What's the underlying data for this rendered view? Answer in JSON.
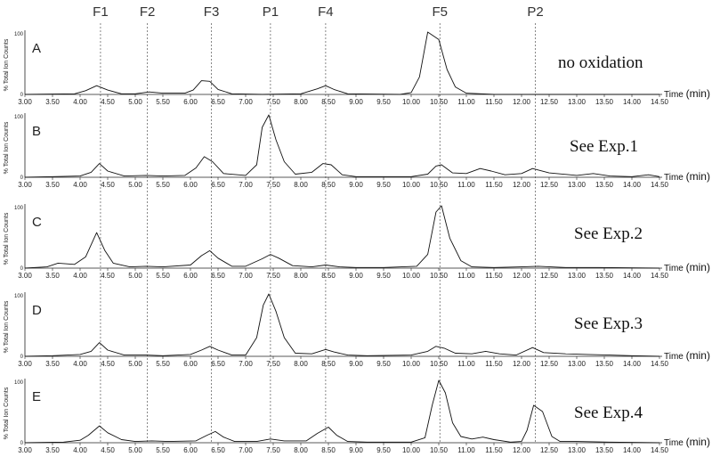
{
  "chart_data": {
    "type": "line",
    "xlabel": "Time",
    "xunit": "(min)",
    "ylabel": "% Total Ion Counts",
    "x_range": [
      3.0,
      14.5
    ],
    "y_range": [
      0,
      100
    ],
    "y_ticks": [
      "100",
      "0"
    ],
    "x_ticks": [
      "3.00",
      "3.50",
      "4.00",
      "4.50",
      "5.00",
      "5.50",
      "6.00",
      "6.50",
      "7.00",
      "7.50",
      "8.00",
      "8.50",
      "9.00",
      "9.50",
      "10.00",
      "10.50",
      "11.00",
      "11.50",
      "12.00",
      "12.50",
      "13.00",
      "13.50",
      "14.00",
      "14.50"
    ],
    "markers": [
      {
        "label": "F1",
        "x": 4.37
      },
      {
        "label": "F2",
        "x": 5.22
      },
      {
        "label": "F3",
        "x": 6.38
      },
      {
        "label": "P1",
        "x": 7.45
      },
      {
        "label": "F4",
        "x": 8.45
      },
      {
        "label": "F5",
        "x": 10.52
      },
      {
        "label": "P2",
        "x": 12.25
      }
    ],
    "panels": [
      {
        "label": "A",
        "note": "no oxidation",
        "points": [
          [
            3.0,
            0
          ],
          [
            3.9,
            1
          ],
          [
            4.1,
            6
          ],
          [
            4.3,
            14
          ],
          [
            4.5,
            7
          ],
          [
            4.75,
            1
          ],
          [
            5.0,
            1
          ],
          [
            5.25,
            4
          ],
          [
            5.5,
            2
          ],
          [
            5.9,
            2
          ],
          [
            6.05,
            7
          ],
          [
            6.2,
            22
          ],
          [
            6.35,
            21
          ],
          [
            6.5,
            8
          ],
          [
            6.75,
            1
          ],
          [
            7.3,
            0
          ],
          [
            8.0,
            1
          ],
          [
            8.3,
            9
          ],
          [
            8.45,
            14
          ],
          [
            8.6,
            8
          ],
          [
            8.85,
            1
          ],
          [
            9.8,
            0
          ],
          [
            10.0,
            3
          ],
          [
            10.15,
            28
          ],
          [
            10.3,
            100
          ],
          [
            10.5,
            88
          ],
          [
            10.65,
            40
          ],
          [
            10.8,
            12
          ],
          [
            11.0,
            2
          ],
          [
            11.5,
            0
          ],
          [
            14.5,
            0
          ]
        ]
      },
      {
        "label": "B",
        "note": "See Exp.1",
        "points": [
          [
            3.0,
            0
          ],
          [
            3.5,
            1
          ],
          [
            4.0,
            2
          ],
          [
            4.2,
            8
          ],
          [
            4.35,
            22
          ],
          [
            4.5,
            10
          ],
          [
            4.8,
            2
          ],
          [
            5.2,
            3
          ],
          [
            5.5,
            2
          ],
          [
            5.9,
            3
          ],
          [
            6.1,
            15
          ],
          [
            6.25,
            33
          ],
          [
            6.4,
            25
          ],
          [
            6.6,
            6
          ],
          [
            7.0,
            3
          ],
          [
            7.2,
            20
          ],
          [
            7.3,
            80
          ],
          [
            7.42,
            100
          ],
          [
            7.55,
            60
          ],
          [
            7.7,
            25
          ],
          [
            7.9,
            5
          ],
          [
            8.2,
            8
          ],
          [
            8.4,
            22
          ],
          [
            8.55,
            20
          ],
          [
            8.75,
            4
          ],
          [
            9.0,
            1
          ],
          [
            10.0,
            1
          ],
          [
            10.3,
            5
          ],
          [
            10.45,
            18
          ],
          [
            10.55,
            20
          ],
          [
            10.75,
            7
          ],
          [
            11.0,
            6
          ],
          [
            11.25,
            14
          ],
          [
            11.45,
            10
          ],
          [
            11.7,
            4
          ],
          [
            12.0,
            6
          ],
          [
            12.2,
            14
          ],
          [
            12.5,
            7
          ],
          [
            13.0,
            3
          ],
          [
            13.3,
            6
          ],
          [
            13.6,
            2
          ],
          [
            14.0,
            1
          ],
          [
            14.3,
            4
          ],
          [
            14.5,
            1
          ]
        ]
      },
      {
        "label": "C",
        "note": "See Exp.2",
        "points": [
          [
            3.0,
            0
          ],
          [
            3.4,
            2
          ],
          [
            3.6,
            8
          ],
          [
            3.9,
            6
          ],
          [
            4.1,
            18
          ],
          [
            4.3,
            57
          ],
          [
            4.45,
            28
          ],
          [
            4.6,
            8
          ],
          [
            4.9,
            2
          ],
          [
            5.2,
            3
          ],
          [
            5.5,
            2
          ],
          [
            6.0,
            5
          ],
          [
            6.2,
            20
          ],
          [
            6.35,
            28
          ],
          [
            6.5,
            16
          ],
          [
            6.75,
            3
          ],
          [
            7.0,
            3
          ],
          [
            7.3,
            15
          ],
          [
            7.45,
            22
          ],
          [
            7.6,
            16
          ],
          [
            7.85,
            4
          ],
          [
            8.2,
            2
          ],
          [
            8.45,
            5
          ],
          [
            8.7,
            2
          ],
          [
            9.0,
            1
          ],
          [
            9.5,
            1
          ],
          [
            10.1,
            3
          ],
          [
            10.3,
            22
          ],
          [
            10.45,
            90
          ],
          [
            10.55,
            100
          ],
          [
            10.7,
            48
          ],
          [
            10.9,
            12
          ],
          [
            11.1,
            2
          ],
          [
            11.5,
            1
          ],
          [
            12.0,
            2
          ],
          [
            12.3,
            3
          ],
          [
            12.8,
            1
          ],
          [
            13.4,
            1
          ],
          [
            14.5,
            0
          ]
        ]
      },
      {
        "label": "D",
        "note": "See Exp.3",
        "points": [
          [
            3.0,
            0
          ],
          [
            3.5,
            1
          ],
          [
            4.0,
            3
          ],
          [
            4.2,
            8
          ],
          [
            4.35,
            22
          ],
          [
            4.5,
            10
          ],
          [
            4.8,
            2
          ],
          [
            5.2,
            2
          ],
          [
            5.5,
            1
          ],
          [
            6.0,
            3
          ],
          [
            6.2,
            10
          ],
          [
            6.35,
            16
          ],
          [
            6.5,
            10
          ],
          [
            6.75,
            2
          ],
          [
            7.0,
            2
          ],
          [
            7.2,
            30
          ],
          [
            7.32,
            82
          ],
          [
            7.42,
            100
          ],
          [
            7.55,
            72
          ],
          [
            7.7,
            30
          ],
          [
            7.9,
            5
          ],
          [
            8.2,
            4
          ],
          [
            8.45,
            11
          ],
          [
            8.6,
            7
          ],
          [
            8.85,
            2
          ],
          [
            9.2,
            1
          ],
          [
            10.0,
            2
          ],
          [
            10.3,
            8
          ],
          [
            10.45,
            16
          ],
          [
            10.6,
            13
          ],
          [
            10.8,
            5
          ],
          [
            11.1,
            4
          ],
          [
            11.35,
            8
          ],
          [
            11.6,
            4
          ],
          [
            11.9,
            2
          ],
          [
            12.2,
            14
          ],
          [
            12.4,
            6
          ],
          [
            12.8,
            4
          ],
          [
            13.2,
            3
          ],
          [
            13.6,
            2
          ],
          [
            14.0,
            1
          ],
          [
            14.5,
            0
          ]
        ]
      },
      {
        "label": "E",
        "note": "See Exp.4",
        "points": [
          [
            3.0,
            0
          ],
          [
            3.7,
            1
          ],
          [
            4.0,
            4
          ],
          [
            4.15,
            12
          ],
          [
            4.35,
            27
          ],
          [
            4.5,
            16
          ],
          [
            4.75,
            5
          ],
          [
            5.0,
            2
          ],
          [
            5.3,
            3
          ],
          [
            5.6,
            2
          ],
          [
            6.1,
            3
          ],
          [
            6.3,
            12
          ],
          [
            6.45,
            18
          ],
          [
            6.6,
            9
          ],
          [
            6.8,
            2
          ],
          [
            7.2,
            2
          ],
          [
            7.45,
            6
          ],
          [
            7.7,
            3
          ],
          [
            8.1,
            3
          ],
          [
            8.3,
            15
          ],
          [
            8.5,
            25
          ],
          [
            8.65,
            12
          ],
          [
            8.85,
            2
          ],
          [
            9.2,
            1
          ],
          [
            10.0,
            1
          ],
          [
            10.25,
            8
          ],
          [
            10.38,
            60
          ],
          [
            10.5,
            100
          ],
          [
            10.62,
            80
          ],
          [
            10.75,
            32
          ],
          [
            10.9,
            10
          ],
          [
            11.1,
            6
          ],
          [
            11.3,
            9
          ],
          [
            11.5,
            5
          ],
          [
            11.8,
            1
          ],
          [
            12.0,
            2
          ],
          [
            12.1,
            20
          ],
          [
            12.22,
            60
          ],
          [
            12.38,
            50
          ],
          [
            12.55,
            10
          ],
          [
            12.7,
            2
          ],
          [
            13.0,
            2
          ],
          [
            13.6,
            1
          ],
          [
            14.5,
            0
          ]
        ]
      }
    ]
  }
}
